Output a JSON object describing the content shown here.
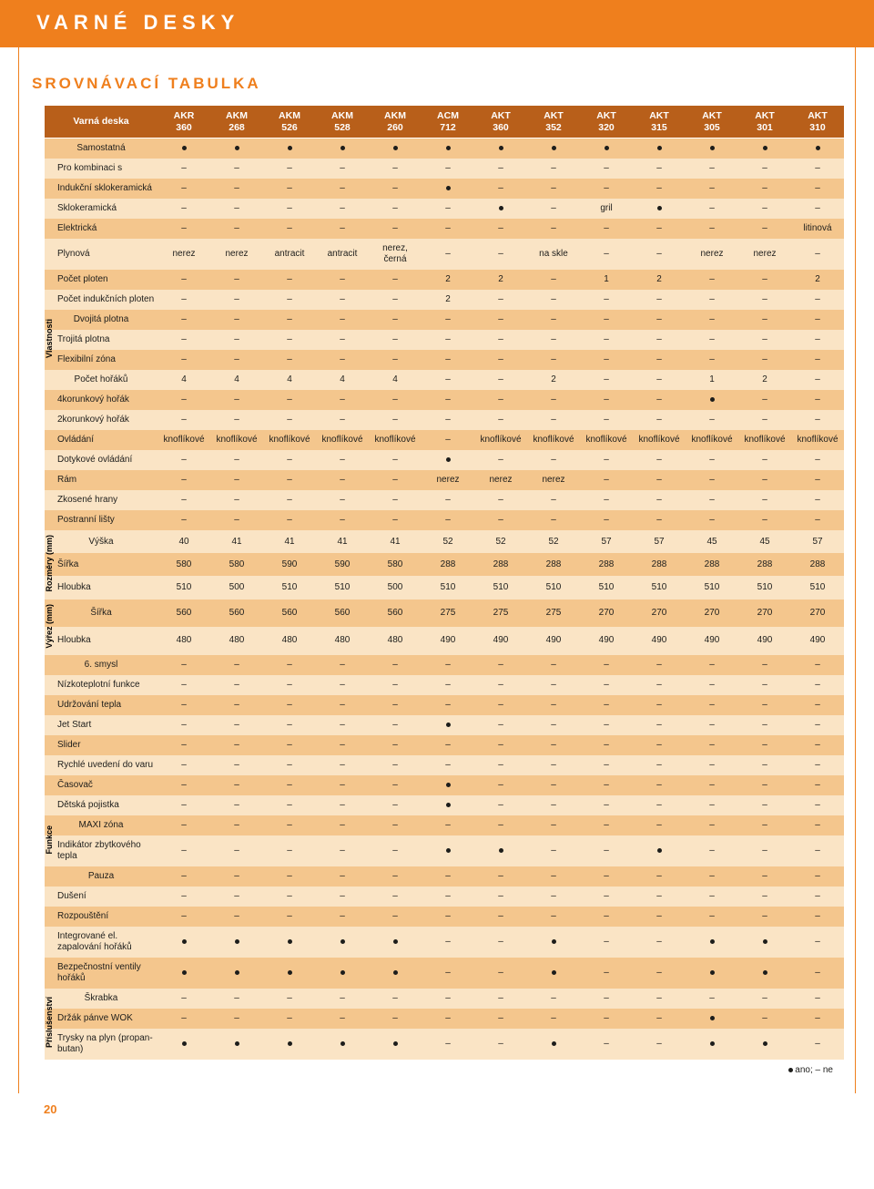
{
  "page": {
    "title": "VARNÉ DESKY",
    "subtitle": "SROVNÁVACÍ TABULKA",
    "first_header": "Varná deska",
    "legend_yes": "ano",
    "legend_no": "ne",
    "page_number": "20"
  },
  "colors": {
    "accent": "#ef7f1d",
    "header_bg": "#b85f1a",
    "row_dark": "#f4c68d",
    "row_light": "#fae4c5",
    "text": "#1d1d1b"
  },
  "models": [
    "AKR 360",
    "AKM 268",
    "AKM 526",
    "AKM 528",
    "AKM 260",
    "ACM 712",
    "AKT 360",
    "AKT 352",
    "AKT 320",
    "AKT 315",
    "AKT 305",
    "AKT 301",
    "AKT 310"
  ],
  "DOT": "•",
  "sections": [
    {
      "label": null,
      "rows": [
        {
          "name": "Samostatná",
          "cells": [
            "•",
            "•",
            "•",
            "•",
            "•",
            "•",
            "•",
            "•",
            "•",
            "•",
            "•",
            "•",
            "•"
          ]
        },
        {
          "name": "Pro kombinaci s",
          "cells": [
            "–",
            "–",
            "–",
            "–",
            "–",
            "–",
            "–",
            "–",
            "–",
            "–",
            "–",
            "–",
            "–"
          ]
        },
        {
          "name": "Indukční sklokeramická",
          "cells": [
            "–",
            "–",
            "–",
            "–",
            "–",
            "•",
            "–",
            "–",
            "–",
            "–",
            "–",
            "–",
            "–"
          ]
        },
        {
          "name": "Sklokeramická",
          "cells": [
            "–",
            "–",
            "–",
            "–",
            "–",
            "–",
            "•",
            "–",
            "gril",
            "•",
            "–",
            "–",
            "–"
          ]
        },
        {
          "name": "Elektrická",
          "cells": [
            "–",
            "–",
            "–",
            "–",
            "–",
            "–",
            "–",
            "–",
            "–",
            "–",
            "–",
            "–",
            "liti­nová"
          ]
        },
        {
          "name": "Plynová",
          "cells": [
            "nerez",
            "nerez",
            "antracit",
            "antracit",
            "nerez, černá",
            "–",
            "–",
            "na skle",
            "–",
            "–",
            "nerez",
            "nerez",
            "–"
          ]
        },
        {
          "name": "Počet ploten",
          "cells": [
            "–",
            "–",
            "–",
            "–",
            "–",
            "2",
            "2",
            "–",
            "1",
            "2",
            "–",
            "–",
            "2"
          ]
        },
        {
          "name": "Počet indukčních ploten",
          "cells": [
            "–",
            "–",
            "–",
            "–",
            "–",
            "2",
            "–",
            "–",
            "–",
            "–",
            "–",
            "–",
            "–"
          ]
        }
      ]
    },
    {
      "label": "Vlastnosti",
      "rows": [
        {
          "name": "Dvojitá plotna",
          "cells": [
            "–",
            "–",
            "–",
            "–",
            "–",
            "–",
            "–",
            "–",
            "–",
            "–",
            "–",
            "–",
            "–"
          ]
        },
        {
          "name": "Trojitá plotna",
          "cells": [
            "–",
            "–",
            "–",
            "–",
            "–",
            "–",
            "–",
            "–",
            "–",
            "–",
            "–",
            "–",
            "–"
          ]
        },
        {
          "name": "Flexibilní zóna",
          "cells": [
            "–",
            "–",
            "–",
            "–",
            "–",
            "–",
            "–",
            "–",
            "–",
            "–",
            "–",
            "–",
            "–"
          ]
        }
      ]
    },
    {
      "label": null,
      "rows": [
        {
          "name": "Počet hořáků",
          "cells": [
            "4",
            "4",
            "4",
            "4",
            "4",
            "–",
            "–",
            "2",
            "–",
            "–",
            "1",
            "2",
            "–"
          ]
        },
        {
          "name": "4korunkový hořák",
          "cells": [
            "–",
            "–",
            "–",
            "–",
            "–",
            "–",
            "–",
            "–",
            "–",
            "–",
            "•",
            "–",
            "–"
          ]
        },
        {
          "name": "2korunkový hořák",
          "cells": [
            "–",
            "–",
            "–",
            "–",
            "–",
            "–",
            "–",
            "–",
            "–",
            "–",
            "–",
            "–",
            "–"
          ]
        },
        {
          "name": "Ovládání",
          "cells": [
            "knoflíkové",
            "knoflíkové",
            "knoflíkové",
            "knoflíkové",
            "knoflíkové",
            "–",
            "knoflíkové",
            "knoflíkové",
            "knoflíkové",
            "knoflíkové",
            "knoflíkové",
            "knoflíkové",
            "knoflíkové"
          ]
        },
        {
          "name": "Dotykové ovládání",
          "cells": [
            "–",
            "–",
            "–",
            "–",
            "–",
            "•",
            "–",
            "–",
            "–",
            "–",
            "–",
            "–",
            "–"
          ]
        },
        {
          "name": "Rám",
          "cells": [
            "–",
            "–",
            "–",
            "–",
            "–",
            "nerez",
            "nerez",
            "nerez",
            "–",
            "–",
            "–",
            "–",
            "–"
          ]
        },
        {
          "name": "Zkosené hrany",
          "cells": [
            "–",
            "–",
            "–",
            "–",
            "–",
            "–",
            "–",
            "–",
            "–",
            "–",
            "–",
            "–",
            "–"
          ]
        },
        {
          "name": "Postranní lišty",
          "cells": [
            "–",
            "–",
            "–",
            "–",
            "–",
            "–",
            "–",
            "–",
            "–",
            "–",
            "–",
            "–",
            "–"
          ]
        }
      ]
    },
    {
      "label": "Rozměry (mm)",
      "rows": [
        {
          "name": "Výška",
          "cells": [
            "40",
            "41",
            "41",
            "41",
            "41",
            "52",
            "52",
            "52",
            "57",
            "57",
            "45",
            "45",
            "57"
          ]
        },
        {
          "name": "Šířka",
          "cells": [
            "580",
            "580",
            "590",
            "590",
            "580",
            "288",
            "288",
            "288",
            "288",
            "288",
            "288",
            "288",
            "288"
          ]
        },
        {
          "name": "Hloubka",
          "cells": [
            "510",
            "500",
            "510",
            "510",
            "500",
            "510",
            "510",
            "510",
            "510",
            "510",
            "510",
            "510",
            "510"
          ]
        }
      ]
    },
    {
      "label": "Výřez (mm)",
      "rows": [
        {
          "name": "Šířka",
          "cells": [
            "560",
            "560",
            "560",
            "560",
            "560",
            "275",
            "275",
            "275",
            "270",
            "270",
            "270",
            "270",
            "270"
          ]
        },
        {
          "name": "Hloubka",
          "cells": [
            "480",
            "480",
            "480",
            "480",
            "480",
            "490",
            "490",
            "490",
            "490",
            "490",
            "490",
            "490",
            "490"
          ]
        }
      ]
    },
    {
      "label": null,
      "rows": [
        {
          "name": "6. smysl",
          "cells": [
            "–",
            "–",
            "–",
            "–",
            "–",
            "–",
            "–",
            "–",
            "–",
            "–",
            "–",
            "–",
            "–"
          ]
        },
        {
          "name": "Nízkoteplotní funkce",
          "cells": [
            "–",
            "–",
            "–",
            "–",
            "–",
            "–",
            "–",
            "–",
            "–",
            "–",
            "–",
            "–",
            "–"
          ]
        },
        {
          "name": "Udržování tepla",
          "cells": [
            "–",
            "–",
            "–",
            "–",
            "–",
            "–",
            "–",
            "–",
            "–",
            "–",
            "–",
            "–",
            "–"
          ]
        },
        {
          "name": "Jet Start",
          "cells": [
            "–",
            "–",
            "–",
            "–",
            "–",
            "•",
            "–",
            "–",
            "–",
            "–",
            "–",
            "–",
            "–"
          ]
        },
        {
          "name": "Slider",
          "cells": [
            "–",
            "–",
            "–",
            "–",
            "–",
            "–",
            "–",
            "–",
            "–",
            "–",
            "–",
            "–",
            "–"
          ]
        },
        {
          "name": "Rychlé uvedení do varu",
          "cells": [
            "–",
            "–",
            "–",
            "–",
            "–",
            "–",
            "–",
            "–",
            "–",
            "–",
            "–",
            "–",
            "–"
          ]
        },
        {
          "name": "Časovač",
          "cells": [
            "–",
            "–",
            "–",
            "–",
            "–",
            "•",
            "–",
            "–",
            "–",
            "–",
            "–",
            "–",
            "–"
          ]
        },
        {
          "name": "Dětská pojistka",
          "cells": [
            "–",
            "–",
            "–",
            "–",
            "–",
            "•",
            "–",
            "–",
            "–",
            "–",
            "–",
            "–",
            "–"
          ]
        }
      ]
    },
    {
      "label": "Funkce",
      "rows": [
        {
          "name": "MAXI zóna",
          "cells": [
            "–",
            "–",
            "–",
            "–",
            "–",
            "–",
            "–",
            "–",
            "–",
            "–",
            "–",
            "–",
            "–"
          ]
        },
        {
          "name": "Indikátor zbytkového tepla",
          "cells": [
            "–",
            "–",
            "–",
            "–",
            "–",
            "•",
            "•",
            "–",
            "–",
            "•",
            "–",
            "–",
            "–"
          ]
        }
      ]
    },
    {
      "label": null,
      "rows": [
        {
          "name": "Pauza",
          "cells": [
            "–",
            "–",
            "–",
            "–",
            "–",
            "–",
            "–",
            "–",
            "–",
            "–",
            "–",
            "–",
            "–"
          ]
        },
        {
          "name": "Dušení",
          "cells": [
            "–",
            "–",
            "–",
            "–",
            "–",
            "–",
            "–",
            "–",
            "–",
            "–",
            "–",
            "–",
            "–"
          ]
        },
        {
          "name": "Rozpouštění",
          "cells": [
            "–",
            "–",
            "–",
            "–",
            "–",
            "–",
            "–",
            "–",
            "–",
            "–",
            "–",
            "–",
            "–"
          ]
        },
        {
          "name": "Integrované el. zapalování hořáků",
          "cells": [
            "•",
            "•",
            "•",
            "•",
            "•",
            "–",
            "–",
            "•",
            "–",
            "–",
            "•",
            "•",
            "–"
          ]
        },
        {
          "name": "Bezpečnostní ventily hořáků",
          "cells": [
            "•",
            "•",
            "•",
            "•",
            "•",
            "–",
            "–",
            "•",
            "–",
            "–",
            "•",
            "•",
            "–"
          ]
        }
      ]
    },
    {
      "label": "Příslušenství",
      "rows": [
        {
          "name": "Škrabka",
          "cells": [
            "–",
            "–",
            "–",
            "–",
            "–",
            "–",
            "–",
            "–",
            "–",
            "–",
            "–",
            "–",
            "–"
          ]
        },
        {
          "name": "Držák pánve WOK",
          "cells": [
            "–",
            "–",
            "–",
            "–",
            "–",
            "–",
            "–",
            "–",
            "–",
            "–",
            "•",
            "–",
            "–"
          ]
        },
        {
          "name": "Trysky na plyn (propan-butan)",
          "cells": [
            "•",
            "•",
            "•",
            "•",
            "•",
            "–",
            "–",
            "•",
            "–",
            "–",
            "•",
            "•",
            "–"
          ]
        }
      ]
    }
  ]
}
